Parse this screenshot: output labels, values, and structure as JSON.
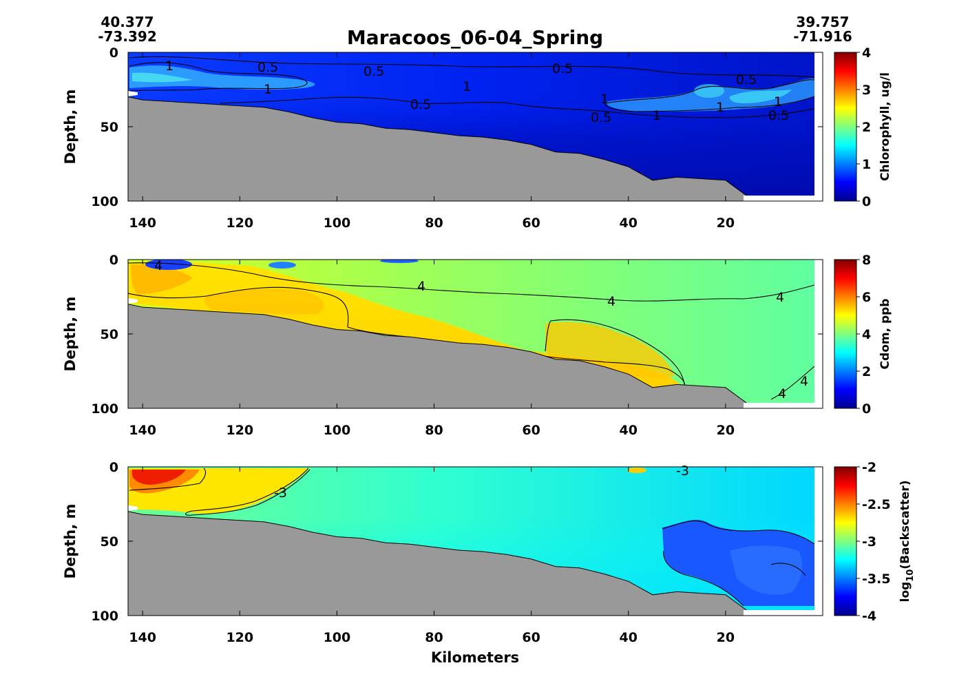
{
  "chart_data": {
    "type": "heatmap",
    "title": "Maracoos_06-04_Spring",
    "start_coords": {
      "lat": "40.377",
      "lon": "-73.392"
    },
    "end_coords": {
      "lat": "39.757",
      "lon": "-71.916"
    },
    "xlabel": "Kilometers",
    "xlim": [
      143,
      0
    ],
    "xticks": [
      140,
      120,
      100,
      80,
      60,
      40,
      20
    ],
    "bathymetry": {
      "km": [
        143,
        140,
        135,
        130,
        125,
        120,
        115,
        110,
        105,
        100,
        95,
        90,
        85,
        80,
        75,
        70,
        65,
        60,
        55,
        50,
        45,
        40,
        35,
        30,
        25,
        20,
        15
      ],
      "depth": [
        30,
        32,
        33,
        34,
        35,
        36,
        37,
        40,
        44,
        47,
        48,
        51,
        52,
        54,
        56,
        57,
        59,
        62,
        67,
        68,
        72,
        77,
        86,
        84,
        85,
        86,
        98
      ]
    },
    "panels": [
      {
        "variable": "Chlorophyll",
        "colorbar_label": "Chlorophyll, ug/l",
        "ylabel": "Depth, m",
        "ylim": [
          100,
          0
        ],
        "yticks": [
          0,
          50,
          100
        ],
        "clim": [
          0,
          4
        ],
        "cticks": [
          "4",
          "3",
          "2",
          "1",
          "0"
        ],
        "contour_labels": [
          "1",
          "0.5",
          "0.5",
          "0.5",
          "1",
          "1",
          "0.5",
          "1",
          "0.5",
          "0.5",
          "1",
          "0.5",
          "1",
          "1"
        ]
      },
      {
        "variable": "Cdom",
        "colorbar_label": "Cdom, ppb",
        "ylabel": "Depth, m",
        "ylim": [
          100,
          0
        ],
        "yticks": [
          0,
          50,
          100
        ],
        "clim": [
          0,
          8
        ],
        "cticks": [
          "8",
          "6",
          "4",
          "2",
          "0"
        ],
        "contour_labels": [
          "4",
          "4",
          "4",
          "4",
          "4",
          "4"
        ]
      },
      {
        "variable": "log10(Backscatter)",
        "colorbar_label_base": "log",
        "colorbar_label_sub": "10",
        "colorbar_label_rest": "(Backscatter)",
        "ylabel": "Depth, m",
        "ylim": [
          100,
          0
        ],
        "yticks": [
          0,
          50,
          100
        ],
        "clim": [
          -4,
          -2
        ],
        "cticks": [
          "-2",
          "-2.5",
          "-3",
          "-3.5",
          "-4"
        ],
        "contour_labels": [
          "-3",
          "-3"
        ]
      }
    ]
  }
}
